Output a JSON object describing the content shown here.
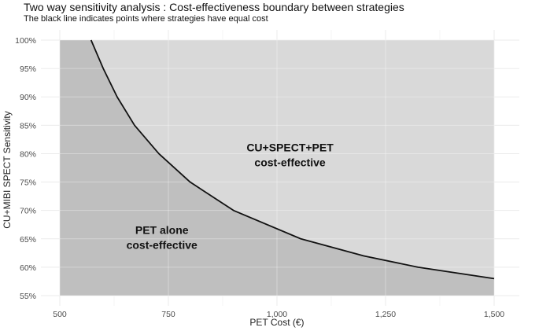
{
  "chart_data": {
    "type": "line",
    "title": "Two way sensitivity analysis : Cost-effectiveness boundary between strategies",
    "subtitle": "The black line indicates points where strategies have equal cost",
    "xlabel": "PET Cost (€)",
    "ylabel": "CU+MIBI SPECT Sensitivity",
    "xlim": [
      500,
      1500
    ],
    "ylim": [
      0.55,
      1.0
    ],
    "x_ticks": [
      500,
      750,
      1000,
      1250,
      1500
    ],
    "x_tick_labels": [
      "500",
      "750",
      "1,000",
      "1,250",
      "1,500"
    ],
    "y_ticks": [
      0.55,
      0.6,
      0.65,
      0.7,
      0.75,
      0.8,
      0.85,
      0.9,
      0.95,
      1.0
    ],
    "y_tick_labels": [
      "55%",
      "60%",
      "65%",
      "70%",
      "75%",
      "80%",
      "85%",
      "90%",
      "95%",
      "100%"
    ],
    "grid": true,
    "series": [
      {
        "x": [
          572,
          600,
          632,
          672,
          728,
          800,
          900,
          1055,
          1200,
          1325,
          1500
        ],
        "y": [
          1.0,
          0.95,
          0.9,
          0.85,
          0.8,
          0.75,
          0.7,
          0.65,
          0.62,
          0.6,
          0.58
        ]
      }
    ],
    "regions": {
      "below": {
        "label_lines": [
          "PET alone",
          "cost-effective"
        ],
        "color": "#bfbfbf"
      },
      "above": {
        "label_lines": [
          "CU+SPECT+PET",
          "cost-effective"
        ],
        "color": "#d9d9d9"
      }
    },
    "annotations": [
      {
        "lines": [
          "CU+SPECT+PET",
          "cost-effective"
        ],
        "x": 1030,
        "y": 0.8
      },
      {
        "lines": [
          "PET alone",
          "cost-effective"
        ],
        "x": 735,
        "y": 0.655
      }
    ]
  }
}
